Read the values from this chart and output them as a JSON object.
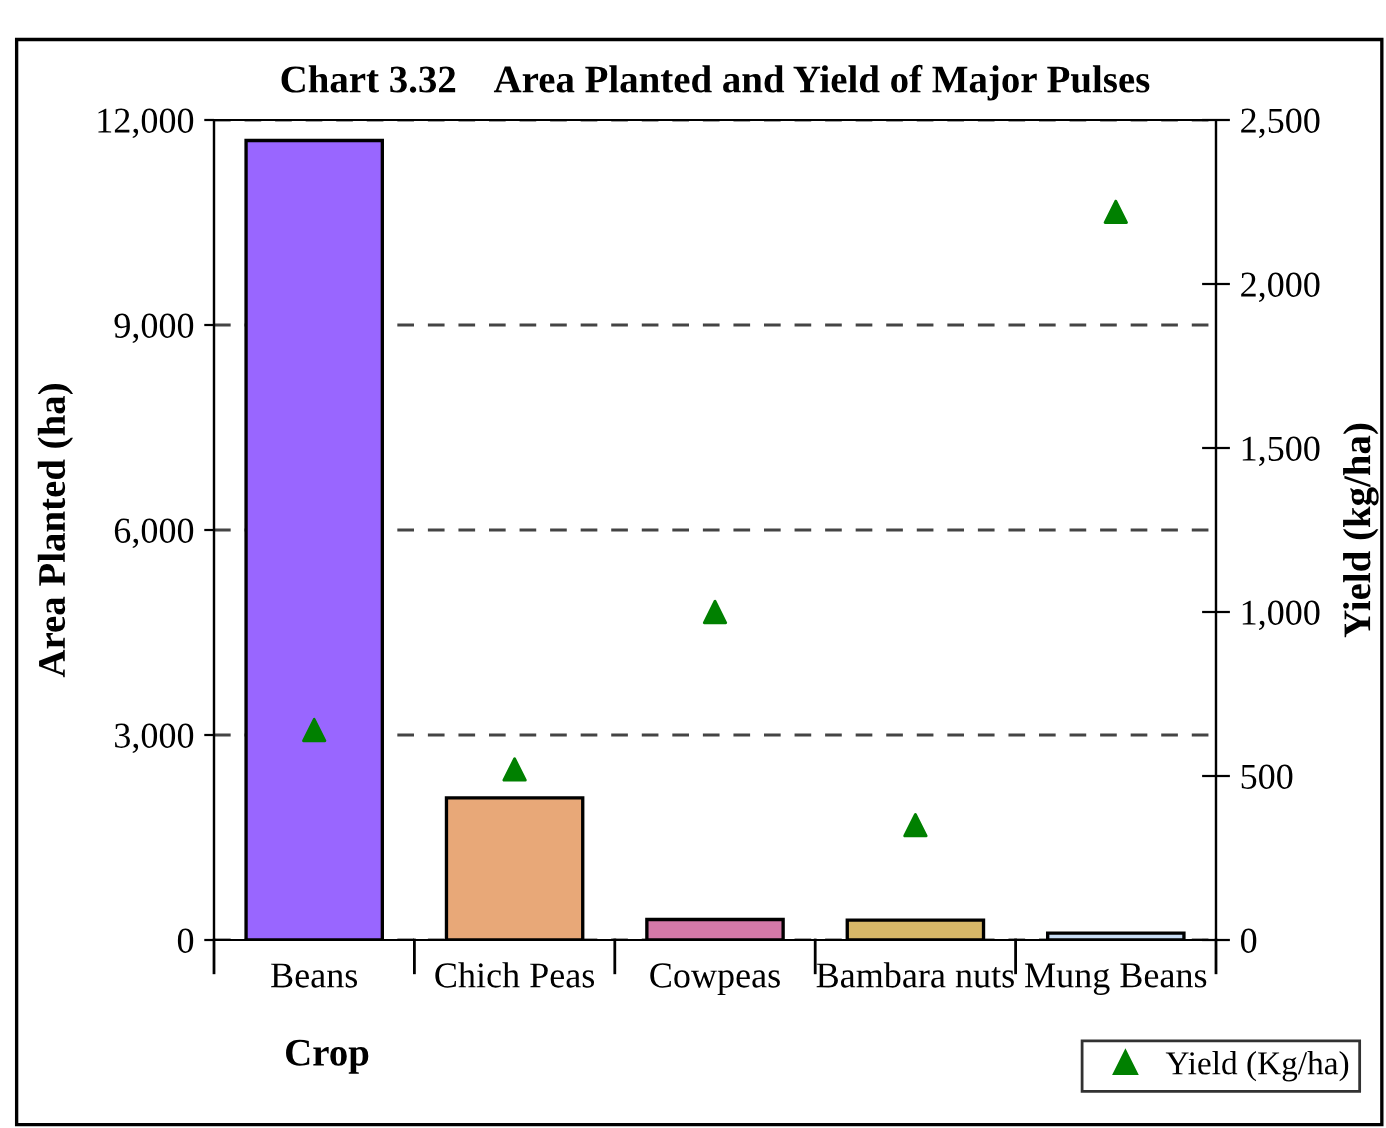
{
  "chart_data": {
    "type": "bar",
    "title": "Chart 3.32    Area Planted and Yield of Major Pulses",
    "xlabel": "Crop",
    "ylabel": "Area Planted (ha)",
    "y2label": "Yield (kg/ha)",
    "categories": [
      "Beans",
      "Chich Peas",
      "Cowpeas",
      "Bambara nuts",
      "Mung Beans"
    ],
    "series": [
      {
        "colors": [
          "#9966ff",
          "#e8a878",
          "#d479a8",
          "#d8b868",
          "#c8dcf4"
        ],
        "values": [
          11700,
          2080,
          300,
          290,
          100
        ]
      },
      {
        "type": "scatter",
        "name": "Yield (Kg/ha)",
        "axis": "y2",
        "color": "#008000",
        "marker": "triangle",
        "values": [
          640,
          520,
          1000,
          350,
          2220
        ]
      }
    ],
    "ylim": [
      0,
      12000
    ],
    "yticks": [
      {
        "value": 0,
        "label": "0"
      },
      {
        "value": 3000,
        "label": "3,000"
      },
      {
        "value": 6000,
        "label": "6,000"
      },
      {
        "value": 9000,
        "label": "9,000"
      },
      {
        "value": 12000,
        "label": "12,000"
      }
    ],
    "y2lim": [
      0,
      2500
    ],
    "y2ticks": [
      {
        "value": 0,
        "label": "0"
      },
      {
        "value": 500,
        "label": "500"
      },
      {
        "value": 1000,
        "label": "1,000"
      },
      {
        "value": 1500,
        "label": "1,500"
      },
      {
        "value": 2000,
        "label": "2,000"
      },
      {
        "value": 2500,
        "label": "2,500"
      }
    ],
    "grid": "y",
    "legend": "bottom right"
  }
}
